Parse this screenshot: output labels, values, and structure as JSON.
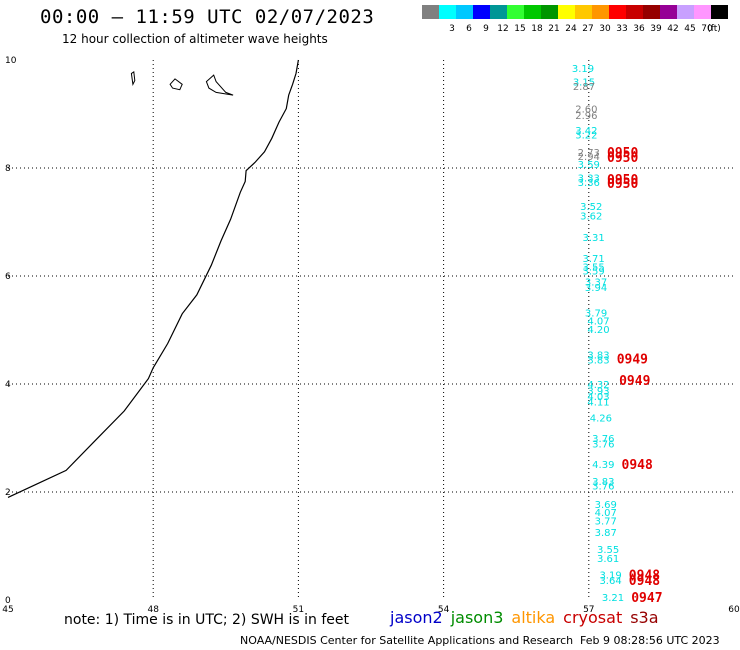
{
  "header": {
    "title": "00:00 – 11:59 UTC 02/07/2023",
    "subtitle": "12 hour collection of altimeter wave heights"
  },
  "colorbar": {
    "unit": "(ft)",
    "bins": [
      {
        "label": "",
        "color": "#808080"
      },
      {
        "label": "3",
        "color": "#00ffff"
      },
      {
        "label": "6",
        "color": "#00c8ff"
      },
      {
        "label": "9",
        "color": "#0000ff"
      },
      {
        "label": "12",
        "color": "#009696"
      },
      {
        "label": "15",
        "color": "#32ff32"
      },
      {
        "label": "18",
        "color": "#00c800"
      },
      {
        "label": "21",
        "color": "#009600"
      },
      {
        "label": "24",
        "color": "#ffff00"
      },
      {
        "label": "27",
        "color": "#ffc800"
      },
      {
        "label": "30",
        "color": "#ff9600"
      },
      {
        "label": "33",
        "color": "#ff0000"
      },
      {
        "label": "36",
        "color": "#c80000"
      },
      {
        "label": "39",
        "color": "#960000"
      },
      {
        "label": "42",
        "color": "#960096"
      },
      {
        "label": "45",
        "color": "#c8a0ff"
      },
      {
        "label": "70",
        "color": "#ff96ff"
      },
      {
        "label": "",
        "color": "#000000"
      }
    ]
  },
  "axes": {
    "x_ticks": [
      "45",
      "48",
      "51",
      "54",
      "57",
      "60"
    ],
    "y_ticks": [
      "0",
      "2",
      "4",
      "6",
      "8",
      "10"
    ]
  },
  "observations": [
    {
      "v": "3.19",
      "lat": 9.85,
      "lon": 56.88,
      "c": "#00e0e0"
    },
    {
      "v": "3.15",
      "lat": 9.6,
      "lon": 56.9,
      "c": "#00e0e0"
    },
    {
      "v": "2.87",
      "lat": 9.52,
      "lon": 56.9,
      "c": "#808080"
    },
    {
      "v": "2.60",
      "lat": 9.1,
      "lon": 56.95,
      "c": "#808080"
    },
    {
      "v": "2.96",
      "lat": 8.98,
      "lon": 56.95,
      "c": "#808080"
    },
    {
      "v": "3.42",
      "lat": 8.7,
      "lon": 56.95,
      "c": "#00e0e0"
    },
    {
      "v": "3.22",
      "lat": 8.62,
      "lon": 56.95,
      "c": "#00e0e0"
    },
    {
      "v": "2.73",
      "lat": 8.3,
      "lon": 57.0,
      "c": "#808080"
    },
    {
      "v": "2.94",
      "lat": 8.22,
      "lon": 57.0,
      "c": "#808080"
    },
    {
      "v": "3.59",
      "lat": 8.07,
      "lon": 57.0,
      "c": "#00e0e0"
    },
    {
      "v": "3.33",
      "lat": 7.82,
      "lon": 57.0,
      "c": "#00e0e0"
    },
    {
      "v": "3.36",
      "lat": 7.74,
      "lon": 57.0,
      "c": "#00e0e0"
    },
    {
      "v": "3.52",
      "lat": 7.3,
      "lon": 57.05,
      "c": "#00e0e0"
    },
    {
      "v": "3.62",
      "lat": 7.12,
      "lon": 57.05,
      "c": "#00e0e0"
    },
    {
      "v": "3.31",
      "lat": 6.72,
      "lon": 57.1,
      "c": "#00e0e0"
    },
    {
      "v": "3.71",
      "lat": 6.33,
      "lon": 57.1,
      "c": "#00e0e0"
    },
    {
      "v": "3.55",
      "lat": 6.18,
      "lon": 57.1,
      "c": "#00e0e0"
    },
    {
      "v": "3.59",
      "lat": 6.1,
      "lon": 57.1,
      "c": "#00e0e0"
    },
    {
      "v": "3.37",
      "lat": 5.9,
      "lon": 57.15,
      "c": "#00e0e0"
    },
    {
      "v": "3.94",
      "lat": 5.8,
      "lon": 57.15,
      "c": "#00e0e0"
    },
    {
      "v": "3.79",
      "lat": 5.32,
      "lon": 57.15,
      "c": "#00e0e0"
    },
    {
      "v": "4.07",
      "lat": 5.18,
      "lon": 57.2,
      "c": "#00e0e0"
    },
    {
      "v": "4.20",
      "lat": 5.02,
      "lon": 57.2,
      "c": "#00e0e0"
    },
    {
      "v": "3.83",
      "lat": 4.55,
      "lon": 57.2,
      "c": "#00e0e0"
    },
    {
      "v": "3.83",
      "lat": 4.45,
      "lon": 57.2,
      "c": "#00e0e0"
    },
    {
      "v": "4.32",
      "lat": 4.0,
      "lon": 57.2,
      "c": "#00e0e0"
    },
    {
      "v": "3.93",
      "lat": 3.88,
      "lon": 57.2,
      "c": "#00e0e0"
    },
    {
      "v": "4.03",
      "lat": 3.78,
      "lon": 57.2,
      "c": "#00e0e0"
    },
    {
      "v": "4.11",
      "lat": 3.68,
      "lon": 57.2,
      "c": "#00e0e0"
    },
    {
      "v": "4.26",
      "lat": 3.38,
      "lon": 57.25,
      "c": "#00e0e0"
    },
    {
      "v": "3.76",
      "lat": 3.0,
      "lon": 57.3,
      "c": "#00e0e0"
    },
    {
      "v": "3.76",
      "lat": 2.9,
      "lon": 57.3,
      "c": "#00e0e0"
    },
    {
      "v": "4.39",
      "lat": 2.52,
      "lon": 57.3,
      "c": "#00e0e0"
    },
    {
      "v": "3.83",
      "lat": 2.2,
      "lon": 57.3,
      "c": "#00e0e0"
    },
    {
      "v": "3.76",
      "lat": 2.12,
      "lon": 57.3,
      "c": "#00e0e0"
    },
    {
      "v": "3.69",
      "lat": 1.78,
      "lon": 57.35,
      "c": "#00e0e0"
    },
    {
      "v": "4.07",
      "lat": 1.63,
      "lon": 57.35,
      "c": "#00e0e0"
    },
    {
      "v": "3.77",
      "lat": 1.47,
      "lon": 57.35,
      "c": "#00e0e0"
    },
    {
      "v": "3.87",
      "lat": 1.26,
      "lon": 57.35,
      "c": "#00e0e0"
    },
    {
      "v": "3.55",
      "lat": 0.94,
      "lon": 57.4,
      "c": "#00e0e0"
    },
    {
      "v": "3.61",
      "lat": 0.78,
      "lon": 57.4,
      "c": "#00e0e0"
    },
    {
      "v": "3.19",
      "lat": 0.47,
      "lon": 57.45,
      "c": "#00e0e0"
    },
    {
      "v": "3.64",
      "lat": 0.37,
      "lon": 57.45,
      "c": "#00e0e0"
    },
    {
      "v": "3.21",
      "lat": 0.06,
      "lon": 57.5,
      "c": "#00e0e0"
    }
  ],
  "time_labels": [
    {
      "t": "0950",
      "lat": 8.3,
      "lon": 57.7
    },
    {
      "t": "0950",
      "lat": 8.2,
      "lon": 57.7
    },
    {
      "t": "0950",
      "lat": 7.8,
      "lon": 57.7
    },
    {
      "t": "0950",
      "lat": 7.72,
      "lon": 57.7
    },
    {
      "t": "0949",
      "lat": 4.47,
      "lon": 57.9
    },
    {
      "t": "0949",
      "lat": 4.07,
      "lon": 57.95
    },
    {
      "t": "0948",
      "lat": 2.52,
      "lon": 58.0
    },
    {
      "t": "0948",
      "lat": 0.47,
      "lon": 58.15
    },
    {
      "t": "0948",
      "lat": 0.37,
      "lon": 58.15
    },
    {
      "t": "0947",
      "lat": 0.06,
      "lon": 58.2
    }
  ],
  "coastline": [
    [
      45.0,
      1.9
    ],
    [
      45.6,
      2.15
    ],
    [
      46.2,
      2.4
    ],
    [
      46.8,
      2.95
    ],
    [
      47.4,
      3.5
    ],
    [
      47.9,
      4.1
    ],
    [
      48.0,
      4.3
    ],
    [
      48.3,
      4.75
    ],
    [
      48.6,
      5.3
    ],
    [
      48.9,
      5.65
    ],
    [
      49.2,
      6.2
    ],
    [
      49.4,
      6.65
    ],
    [
      49.6,
      7.05
    ],
    [
      49.8,
      7.55
    ],
    [
      49.9,
      7.75
    ],
    [
      49.92,
      7.95
    ],
    [
      50.1,
      8.1
    ],
    [
      50.3,
      8.3
    ],
    [
      50.45,
      8.55
    ],
    [
      50.6,
      8.85
    ],
    [
      50.75,
      9.1
    ],
    [
      50.8,
      9.35
    ],
    [
      50.88,
      9.55
    ],
    [
      50.95,
      9.75
    ],
    [
      51.0,
      10.0
    ]
  ],
  "islands": [
    [
      [
        47.55,
        9.75
      ],
      [
        47.58,
        9.55
      ],
      [
        47.62,
        9.62
      ],
      [
        47.6,
        9.78
      ]
    ],
    [
      [
        48.35,
        9.55
      ],
      [
        48.45,
        9.65
      ],
      [
        48.6,
        9.55
      ],
      [
        48.55,
        9.45
      ],
      [
        48.4,
        9.48
      ]
    ],
    [
      [
        49.1,
        9.6
      ],
      [
        49.25,
        9.72
      ],
      [
        49.3,
        9.6
      ],
      [
        49.5,
        9.4
      ],
      [
        49.65,
        9.35
      ],
      [
        49.3,
        9.4
      ],
      [
        49.15,
        9.48
      ]
    ]
  ],
  "satellites": [
    {
      "name": "jason2",
      "color": "#0000c8"
    },
    {
      "name": "jason3",
      "color": "#008c00"
    },
    {
      "name": "altika",
      "color": "#ff9600"
    },
    {
      "name": "cryosat",
      "color": "#c80000"
    },
    {
      "name": "s3a",
      "color": "#960000"
    }
  ],
  "footer": {
    "note": "note:  1) Time is in UTC; 2) SWH is in feet",
    "credit": "NOAA/NESDIS Center for Satellite Applications and Research",
    "generated": "Feb  9 08:28:56 UTC 2023"
  }
}
